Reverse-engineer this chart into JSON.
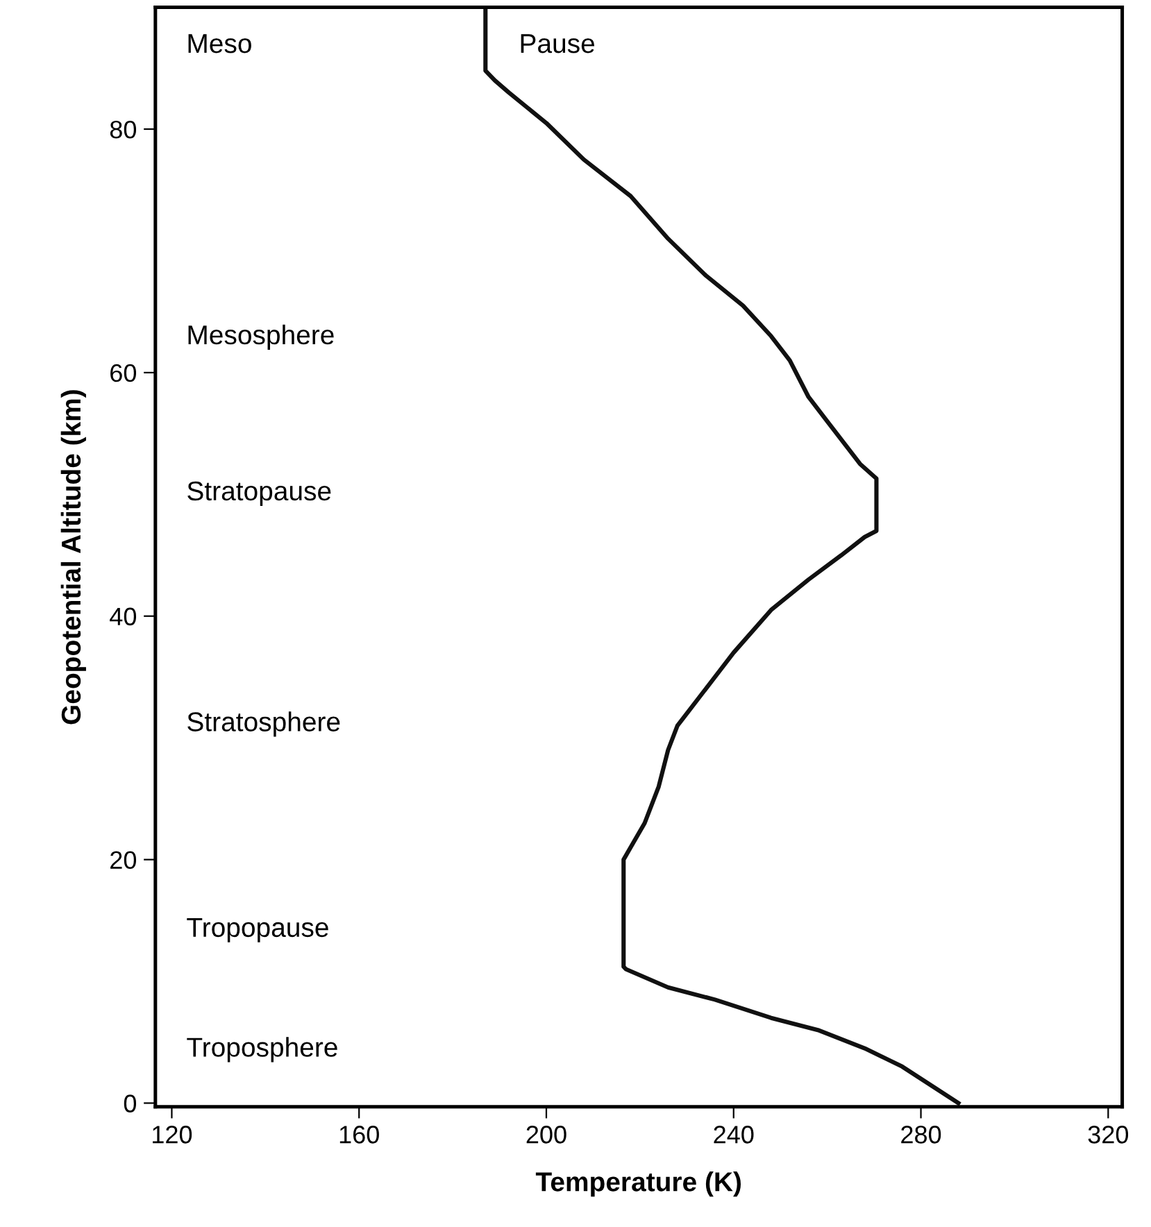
{
  "chart_data": {
    "type": "line",
    "xlabel": "Temperature (K)",
    "ylabel": "Geopotential Altitude (km)",
    "xlim": [
      116.5,
      323
    ],
    "ylim": [
      -0.3,
      90
    ],
    "xticks": [
      120,
      160,
      200,
      240,
      280,
      320
    ],
    "yticks": [
      0,
      20,
      40,
      60,
      80
    ],
    "grid": false,
    "legend": false,
    "marker": "none",
    "line_style": "solid",
    "series": [
      {
        "color": "#111111",
        "x": [
          288,
          282,
          276,
          268,
          258,
          248,
          236,
          226,
          220,
          217,
          216.5,
          216.5,
          216.5,
          218,
          221,
          224,
          226,
          228,
          231,
          234,
          240,
          248,
          256,
          263,
          268,
          270.5,
          270.5,
          270.5,
          267,
          264,
          260,
          256,
          252,
          248,
          242,
          234,
          226,
          218,
          208,
          200,
          192,
          189,
          187,
          187,
          187
        ],
        "values": [
          0,
          1.5,
          3,
          4.5,
          6,
          7,
          8.5,
          9.5,
          10.5,
          11,
          11.2,
          15,
          20,
          21,
          23,
          26,
          29,
          31,
          32.5,
          34,
          37,
          40.5,
          43,
          45,
          46.5,
          47,
          49,
          51.3,
          52.5,
          54,
          56,
          58,
          61,
          63,
          65.5,
          68,
          71,
          74.5,
          77.5,
          80.5,
          83,
          84,
          84.8,
          87,
          90
        ]
      }
    ],
    "annotations": [
      "Meso",
      "Pause",
      "Mesosphere",
      "Stratopause",
      "Stratosphere",
      "Tropopause",
      "Troposphere"
    ]
  }
}
